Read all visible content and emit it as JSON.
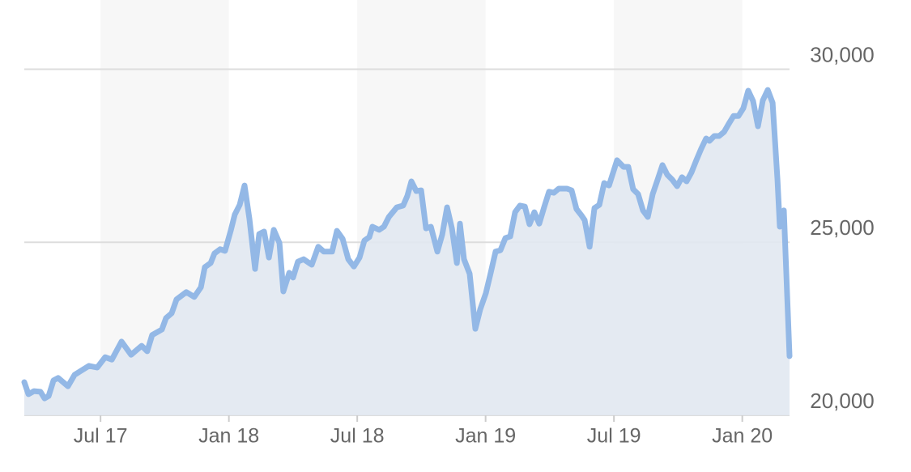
{
  "chart_data": {
    "type": "area",
    "x": [
      2017.203,
      2017.219,
      2017.241,
      2017.266,
      2017.282,
      2017.298,
      2017.317,
      2017.335,
      2017.373,
      2017.399,
      2017.424,
      2017.455,
      2017.487,
      2017.518,
      2017.544,
      2017.582,
      2017.619,
      2017.66,
      2017.682,
      2017.701,
      2017.739,
      2017.755,
      2017.777,
      2017.796,
      2017.834,
      2017.865,
      2017.891,
      2017.906,
      2017.929,
      2017.944,
      2017.966,
      2017.985,
      2018.007,
      2018.023,
      2018.042,
      2018.061,
      2018.08,
      2018.102,
      2018.118,
      2018.137,
      2018.156,
      2018.175,
      2018.197,
      2018.212,
      2018.235,
      2018.25,
      2018.269,
      2018.291,
      2018.323,
      2018.348,
      2018.37,
      2018.402,
      2018.421,
      2018.443,
      2018.465,
      2018.487,
      2018.509,
      2018.528,
      2018.547,
      2018.559,
      2018.585,
      2018.604,
      2018.623,
      2018.654,
      2018.679,
      2018.695,
      2018.711,
      2018.73,
      2018.749,
      2018.768,
      2018.787,
      2018.812,
      2018.831,
      2018.85,
      2018.869,
      2018.888,
      2018.9,
      2018.916,
      2018.938,
      2018.96,
      2018.979,
      2019.001,
      2019.02,
      2019.039,
      2019.058,
      2019.077,
      2019.096,
      2019.115,
      2019.134,
      2019.153,
      2019.171,
      2019.19,
      2019.209,
      2019.228,
      2019.247,
      2019.266,
      2019.285,
      2019.317,
      2019.335,
      2019.354,
      2019.373,
      2019.386,
      2019.405,
      2019.424,
      2019.443,
      2019.462,
      2019.481,
      2019.512,
      2019.537,
      2019.556,
      2019.575,
      2019.594,
      2019.613,
      2019.632,
      2019.651,
      2019.67,
      2019.689,
      2019.708,
      2019.727,
      2019.746,
      2019.765,
      2019.783,
      2019.802,
      2019.821,
      2019.84,
      2019.859,
      2019.872,
      2019.891,
      2019.91,
      2019.929,
      2019.947,
      2019.966,
      2019.985,
      2020.004,
      2020.023,
      2020.042,
      2020.061,
      2020.08,
      2020.099,
      2020.118,
      2020.137,
      2020.146,
      2020.162,
      2020.184
    ],
    "values": [
      20960,
      20610,
      20700,
      20680,
      20490,
      20560,
      21010,
      21080,
      20840,
      21170,
      21290,
      21430,
      21380,
      21680,
      21610,
      22130,
      21750,
      22010,
      21850,
      22320,
      22480,
      22810,
      22950,
      23350,
      23560,
      23420,
      23700,
      24280,
      24400,
      24680,
      24800,
      24750,
      25330,
      25800,
      26080,
      26640,
      25680,
      24230,
      25240,
      25310,
      24560,
      25360,
      24980,
      23580,
      24120,
      23980,
      24440,
      24510,
      24350,
      24870,
      24730,
      24730,
      25330,
      25100,
      24510,
      24300,
      24560,
      25050,
      25150,
      25450,
      25360,
      25450,
      25730,
      26010,
      26060,
      26340,
      26760,
      26480,
      26500,
      25400,
      25450,
      24730,
      25220,
      26010,
      25400,
      24400,
      25540,
      24510,
      24090,
      22500,
      23060,
      23530,
      24120,
      24730,
      24770,
      25120,
      25170,
      25870,
      26060,
      26030,
      25520,
      25870,
      25540,
      26010,
      26460,
      26430,
      26550,
      26550,
      26500,
      25960,
      25780,
      25640,
      24870,
      25990,
      26080,
      26710,
      26640,
      27370,
      27180,
      27180,
      26530,
      26390,
      25920,
      25730,
      26390,
      26810,
      27230,
      26950,
      26810,
      26620,
      26880,
      26760,
      27020,
      27370,
      27700,
      28000,
      27930,
      28070,
      28070,
      28190,
      28420,
      28650,
      28650,
      28870,
      29380,
      29080,
      28350,
      29100,
      29400,
      29030,
      26810,
      25450,
      25920,
      21710
    ],
    "color": "#93b8e6",
    "fill_color": "#e1e8f1",
    "band_color": "#f7f7f7",
    "xlim": [
      2017.203,
      2020.184
    ],
    "xticks": [
      {
        "value": 2017.5,
        "label": "Jul 17"
      },
      {
        "value": 2018.0,
        "label": "Jan 18"
      },
      {
        "value": 2018.5,
        "label": "Jul 18"
      },
      {
        "value": 2019.0,
        "label": "Jan 19"
      },
      {
        "value": 2019.5,
        "label": "Jul 19"
      },
      {
        "value": 2020.0,
        "label": "Jan 20"
      }
    ],
    "ylim": [
      20000,
      32000
    ],
    "yticks": [
      {
        "value": 20000,
        "label": "20,000"
      },
      {
        "value": 25000,
        "label": "25,000"
      },
      {
        "value": 30000,
        "label": "30,000"
      }
    ],
    "grid": true,
    "axis_side": "right"
  }
}
